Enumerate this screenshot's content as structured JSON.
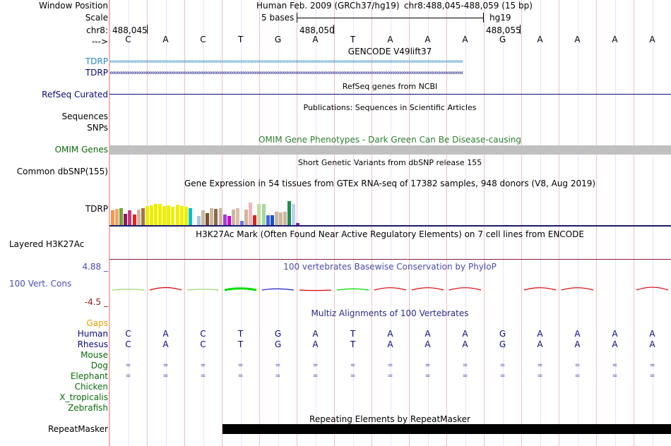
{
  "labels": {
    "window_position": "Window Position",
    "scale": "Scale",
    "chrom": "chr8:",
    "strand": "--->",
    "gencode_tdrp_1": "TDRP",
    "gencode_tdrp_2": "TDRP",
    "refseq": "RefSeq Curated",
    "sequences": "Sequences",
    "snps": "SNPs",
    "omim": "OMIM Genes",
    "dbsnp": "Common dbSNP(155)",
    "gtex_tdrp": "TDRP",
    "h3k27ac": "Layered H3K27Ac",
    "phylop_max": "4.88 _",
    "phylop_label": "100 Vert. Cons",
    "phylop_min": "-4.5 _",
    "gaps": "Gaps",
    "species": [
      "Human",
      "Rhesus",
      "Mouse",
      "Dog",
      "Elephant",
      "Chicken",
      "X_tropicalis",
      "Zebrafish"
    ],
    "repeatmasker": "RepeatMasker"
  },
  "header": {
    "assembly": "Human Feb. 2009 (GRCh37/hg19)",
    "position": "chr8:488,045-488,059 (15 bp)",
    "scale_text": "5 bases",
    "scale_db": "hg19",
    "ticks": [
      "488,045",
      "488,050",
      "488,055"
    ]
  },
  "sequence": [
    "C",
    "A",
    "C",
    "T",
    "G",
    "A",
    "T",
    "A",
    "A",
    "A",
    "G",
    "A",
    "A",
    "A",
    "A"
  ],
  "rhesus_sequence": [
    "C",
    "A",
    "C",
    "T",
    "G",
    "A",
    "T",
    "A",
    "A",
    "A",
    "G",
    "A",
    "A",
    "A",
    "A"
  ],
  "tracks": {
    "gencode_title": "GENCODE V49lift37",
    "refseq_title": "RefSeq genes from NCBI",
    "publications_title": "Publications: Sequences in Scientific Articles",
    "omim_title": "OMIM Gene Phenotypes - Dark Green Can Be Disease-causing",
    "dbsnp_title": "Short Genetic Variants from dbSNP release 155",
    "gtex_title": "Gene Expression in 54 tissues from GTEx RNA-seq of 17382 samples, 948 donors (V8, Aug 2019)",
    "h3k27ac_title": "H3K27Ac Mark (Often Found Near Active Regulatory Elements) on 7 cell lines from ENCODE",
    "phylop_title": "100 vertebrates Basewise Conservation by PhyloP",
    "multiz_title": "Multiz Alignments of 100 Vertebrates",
    "repeat_title": "Repeating Elements by RepeatMasker"
  },
  "gtex_bars": [
    {
      "v": 0.42,
      "c": "#f4954c"
    },
    {
      "v": 0.45,
      "c": "#f2a46a"
    },
    {
      "v": 0.48,
      "c": "#6fa63a"
    },
    {
      "v": 0.31,
      "c": "#8b1c62"
    },
    {
      "v": 0.41,
      "c": "#cc3a7a"
    },
    {
      "v": 0.3,
      "c": "#ee2020"
    },
    {
      "v": 0.44,
      "c": "#cdb79e"
    },
    {
      "v": 0.48,
      "c": "#a0764d"
    },
    {
      "v": 0.52,
      "c": "#eeee00"
    },
    {
      "v": 0.55,
      "c": "#eeee00"
    },
    {
      "v": 0.58,
      "c": "#eeee00"
    },
    {
      "v": 0.58,
      "c": "#eeee00"
    },
    {
      "v": 0.52,
      "c": "#eeee00"
    },
    {
      "v": 0.54,
      "c": "#eeee00"
    },
    {
      "v": 0.5,
      "c": "#eeee00"
    },
    {
      "v": 0.56,
      "c": "#eeee00"
    },
    {
      "v": 0.52,
      "c": "#eeee00"
    },
    {
      "v": 0.5,
      "c": "#eeee00"
    },
    {
      "v": 0.48,
      "c": "#00c4cc"
    },
    {
      "v": 0.0,
      "c": "#ffffff"
    },
    {
      "v": 0.26,
      "c": "#a4c8e0"
    },
    {
      "v": 0.42,
      "c": "#cdb79e"
    },
    {
      "v": 0.34,
      "c": "#7a5230"
    },
    {
      "v": 0.48,
      "c": "#cdb79e"
    },
    {
      "v": 0.46,
      "c": "#8b6a4f"
    },
    {
      "v": 0.48,
      "c": "#cdb79e"
    },
    {
      "v": 0.3,
      "c": "#9e3fcf"
    },
    {
      "v": 0.26,
      "c": "#cd00cd"
    },
    {
      "v": 0.44,
      "c": "#cdb79e"
    },
    {
      "v": 0.48,
      "c": "#d9c0a8"
    },
    {
      "v": 0.11,
      "c": "#7070e0"
    },
    {
      "v": 0.44,
      "c": "#cdb79e"
    },
    {
      "v": 0.62,
      "c": "#f4b8b8"
    },
    {
      "v": 0.28,
      "c": "#dd2222"
    },
    {
      "v": 0.58,
      "c": "#c0e0a0"
    },
    {
      "v": 0.58,
      "c": "#a8d8a0"
    },
    {
      "v": 0.28,
      "c": "#4169e1"
    },
    {
      "v": 0.28,
      "c": "#1e50c0"
    },
    {
      "v": 0.38,
      "c": "#cdb79e"
    },
    {
      "v": 0.36,
      "c": "#cdb79e"
    },
    {
      "v": 0.38,
      "c": "#cdb79e"
    },
    {
      "v": 0.66,
      "c": "#228b55"
    },
    {
      "v": 0.58,
      "c": "#b9d3ee"
    },
    {
      "v": 0.06,
      "c": "#8822aa"
    }
  ],
  "phylop_segments": [
    {
      "start": 0,
      "end": 1,
      "v": 0.5,
      "c": "#9fd870"
    },
    {
      "start": 1,
      "end": 2,
      "v": 1.6,
      "c": "#dd0000"
    },
    {
      "start": 2,
      "end": 3,
      "v": 0.5,
      "c": "#9fd870"
    },
    {
      "start": 3,
      "end": 4,
      "v": 1.0,
      "c": "#00dd00"
    },
    {
      "start": 4,
      "end": 5,
      "v": 0.8,
      "c": "#2020cc"
    },
    {
      "start": 5,
      "end": 6,
      "v": -0.3,
      "c": "#dd0000"
    },
    {
      "start": 6,
      "end": 7,
      "v": 0.8,
      "c": "#00dd00"
    },
    {
      "start": 7,
      "end": 8,
      "v": 1.5,
      "c": "#dd0000"
    },
    {
      "start": 8,
      "end": 9,
      "v": 1.5,
      "c": "#dd0000"
    },
    {
      "start": 9,
      "end": 10,
      "v": 1.5,
      "c": "#dd0000"
    },
    {
      "start": 11,
      "end": 12,
      "v": 1.5,
      "c": "#dd0000"
    },
    {
      "start": 12,
      "end": 13,
      "v": 1.5,
      "c": "#dd0000"
    },
    {
      "start": 14,
      "end": 15,
      "v": 1.8,
      "c": "#dd0000"
    }
  ],
  "colors": {
    "gencode": "#2a8bbf",
    "refseq": "#0c0c78",
    "omim_title": "#2e7d32",
    "omim_bar": "#c0c0c0",
    "gtex_line": "#1b1b6b",
    "h3k27ac_line": "#8b1a3e",
    "phylop": "#4a4ab0",
    "phylop_min": "#8b1a1a",
    "gaps": "#e8a000",
    "multiz_title": "#2a2a90",
    "species_seq": "#0c0c78",
    "species_other": "#0b6b0b"
  }
}
